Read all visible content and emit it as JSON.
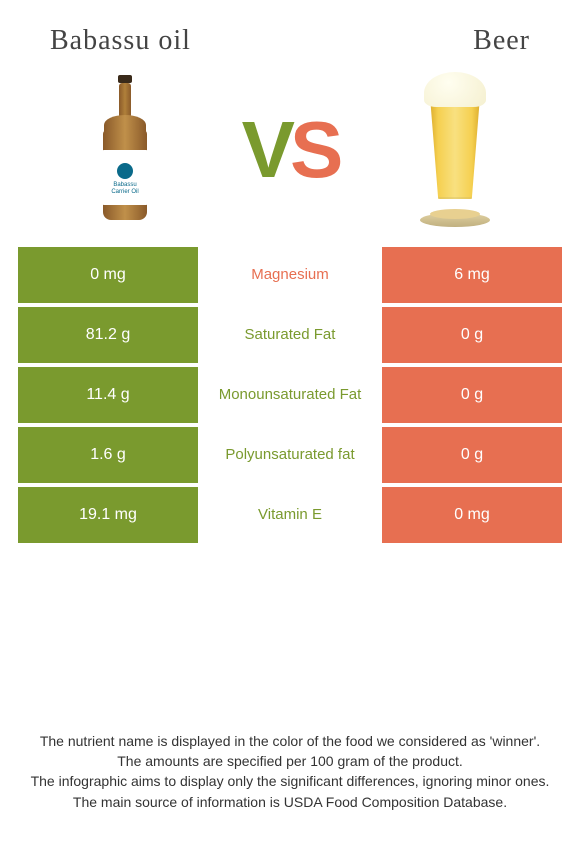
{
  "header": {
    "left_title": "Babassu oil",
    "right_title": "Beer",
    "vs_v": "V",
    "vs_s": "S",
    "bottle_label_line1": "Babassu",
    "bottle_label_line2": "Carrier Oil"
  },
  "colors": {
    "green": "#7a9a2e",
    "orange": "#e76f51",
    "bg": "#ffffff"
  },
  "rows": [
    {
      "left": "0 mg",
      "mid": "Magnesium",
      "right": "6 mg",
      "left_color": "green",
      "right_color": "orange",
      "mid_color": "orange"
    },
    {
      "left": "81.2 g",
      "mid": "Saturated Fat",
      "right": "0 g",
      "left_color": "green",
      "right_color": "orange",
      "mid_color": "green"
    },
    {
      "left": "11.4 g",
      "mid": "Monounsaturated Fat",
      "right": "0 g",
      "left_color": "green",
      "right_color": "orange",
      "mid_color": "green"
    },
    {
      "left": "1.6 g",
      "mid": "Polyunsaturated fat",
      "right": "0 g",
      "left_color": "green",
      "right_color": "orange",
      "mid_color": "green"
    },
    {
      "left": "19.1 mg",
      "mid": "Vitamin E",
      "right": "0 mg",
      "left_color": "green",
      "right_color": "orange",
      "mid_color": "green"
    }
  ],
  "notes": {
    "line1": "The nutrient name is displayed in the color of the food we considered as 'winner'.",
    "line2": "The amounts are specified per 100 gram of the product.",
    "line3": "The infographic aims to display only the significant differences, ignoring minor ones.",
    "line4": "The main source of information is USDA Food Composition Database."
  }
}
